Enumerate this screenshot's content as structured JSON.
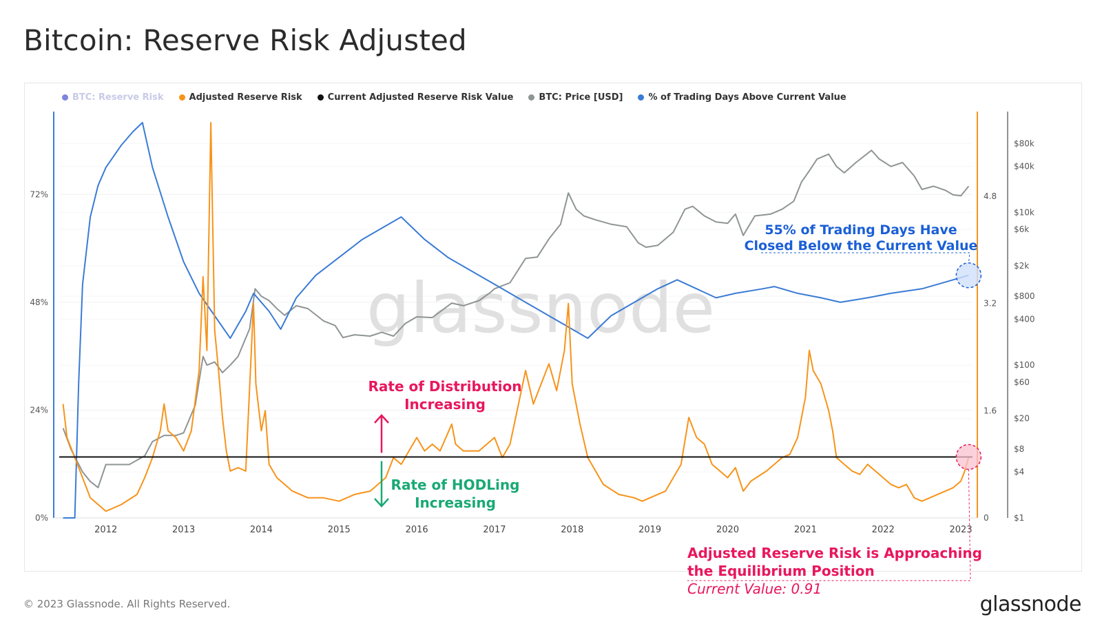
{
  "title": "Bitcoin: Reserve Risk Adjusted",
  "legend": [
    {
      "label": "BTC: Reserve Risk",
      "color": "#7c84e0",
      "dim": true
    },
    {
      "label": "Adjusted Reserve Risk",
      "color": "#f7931a",
      "dim": false
    },
    {
      "label": "Current Adjusted Reserve Risk Value",
      "color": "#111111",
      "dim": false
    },
    {
      "label": "BTC: Price [USD]",
      "color": "#8f9495",
      "dim": false
    },
    {
      "label": "% of Trading Days Above Current Value",
      "color": "#3a7bd5",
      "dim": false
    }
  ],
  "watermark": "glassnode",
  "footer": "© 2023 Glassnode. All Rights Reserved.",
  "brand": "glassnode",
  "annotations": {
    "distribution_line1": "Rate of Distribution",
    "distribution_line2": "Increasing",
    "hodling_line1": "Rate of HODLing",
    "hodling_line2": "Increasing",
    "trading_days_line1": "55% of Trading Days Have",
    "trading_days_line2": "Closed Below the Current Value",
    "equilibrium_line1": "Adjusted Reserve Risk is Approaching",
    "equilibrium_line2": "the Equilibrium Position",
    "current_value": "Current Value: 0.91"
  },
  "colors": {
    "orange": "#f7931a",
    "blue": "#3a7bd5",
    "grey": "#8f9495",
    "black": "#111111",
    "pink": "#e8175d",
    "green": "#19a974",
    "annot_blue": "#1a5fd6"
  },
  "chart_data": {
    "type": "line",
    "x_ticks": [
      "2012",
      "2013",
      "2014",
      "2015",
      "2016",
      "2017",
      "2018",
      "2019",
      "2020",
      "2021",
      "2022",
      "2023"
    ],
    "x_range": [
      2011.4,
      2023.15
    ],
    "left_axis": {
      "ticks": [
        "0%",
        "24%",
        "48%",
        "72%"
      ],
      "range": [
        0,
        88
      ]
    },
    "right_axis_risk": {
      "ticks": [
        "0",
        "1.6",
        "3.2",
        "4.8"
      ],
      "range": [
        0,
        5.9
      ]
    },
    "right_axis_price": {
      "ticks": [
        "$1",
        "$4",
        "$8",
        "$20",
        "$60",
        "$100",
        "$400",
        "$800",
        "$2k",
        "$6k",
        "$10k",
        "$40k",
        "$80k"
      ],
      "tick_values": [
        1,
        4,
        8,
        20,
        60,
        100,
        400,
        800,
        2000,
        6000,
        10000,
        40000,
        80000
      ],
      "scale": "log",
      "range": [
        1,
        150000
      ]
    },
    "current_value": 0.91,
    "series": [
      {
        "name": "Adjusted Reserve Risk",
        "axis": "risk",
        "points": [
          [
            2011.45,
            1.7
          ],
          [
            2011.5,
            1.2
          ],
          [
            2011.6,
            0.9
          ],
          [
            2011.7,
            0.6
          ],
          [
            2011.8,
            0.3
          ],
          [
            2011.9,
            0.2
          ],
          [
            2012.0,
            0.1
          ],
          [
            2012.2,
            0.2
          ],
          [
            2012.4,
            0.35
          ],
          [
            2012.5,
            0.6
          ],
          [
            2012.6,
            0.9
          ],
          [
            2012.7,
            1.3
          ],
          [
            2012.75,
            1.7
          ],
          [
            2012.8,
            1.3
          ],
          [
            2012.9,
            1.2
          ],
          [
            2013.0,
            1.0
          ],
          [
            2013.1,
            1.3
          ],
          [
            2013.2,
            2.2
          ],
          [
            2013.25,
            3.6
          ],
          [
            2013.3,
            2.5
          ],
          [
            2013.35,
            5.9
          ],
          [
            2013.4,
            2.8
          ],
          [
            2013.45,
            2.2
          ],
          [
            2013.5,
            1.5
          ],
          [
            2013.55,
            1.0
          ],
          [
            2013.6,
            0.7
          ],
          [
            2013.7,
            0.75
          ],
          [
            2013.8,
            0.7
          ],
          [
            2013.9,
            3.2
          ],
          [
            2013.93,
            2.0
          ],
          [
            2014.0,
            1.3
          ],
          [
            2014.05,
            1.6
          ],
          [
            2014.1,
            0.8
          ],
          [
            2014.2,
            0.6
          ],
          [
            2014.3,
            0.5
          ],
          [
            2014.4,
            0.4
          ],
          [
            2014.6,
            0.3
          ],
          [
            2014.8,
            0.3
          ],
          [
            2015.0,
            0.25
          ],
          [
            2015.2,
            0.35
          ],
          [
            2015.4,
            0.4
          ],
          [
            2015.6,
            0.6
          ],
          [
            2015.7,
            0.9
          ],
          [
            2015.8,
            0.8
          ],
          [
            2015.9,
            1.0
          ],
          [
            2016.0,
            1.2
          ],
          [
            2016.1,
            1.0
          ],
          [
            2016.2,
            1.1
          ],
          [
            2016.3,
            1.0
          ],
          [
            2016.45,
            1.4
          ],
          [
            2016.5,
            1.1
          ],
          [
            2016.6,
            1.0
          ],
          [
            2016.8,
            1.0
          ],
          [
            2017.0,
            1.2
          ],
          [
            2017.1,
            0.9
          ],
          [
            2017.2,
            1.1
          ],
          [
            2017.4,
            2.2
          ],
          [
            2017.5,
            1.7
          ],
          [
            2017.6,
            2.0
          ],
          [
            2017.7,
            2.3
          ],
          [
            2017.8,
            1.9
          ],
          [
            2017.9,
            2.5
          ],
          [
            2017.95,
            3.2
          ],
          [
            2018.0,
            2.0
          ],
          [
            2018.1,
            1.4
          ],
          [
            2018.2,
            0.9
          ],
          [
            2018.3,
            0.7
          ],
          [
            2018.4,
            0.5
          ],
          [
            2018.6,
            0.35
          ],
          [
            2018.8,
            0.3
          ],
          [
            2018.9,
            0.25
          ],
          [
            2019.0,
            0.3
          ],
          [
            2019.2,
            0.4
          ],
          [
            2019.4,
            0.8
          ],
          [
            2019.5,
            1.5
          ],
          [
            2019.6,
            1.2
          ],
          [
            2019.7,
            1.1
          ],
          [
            2019.8,
            0.8
          ],
          [
            2019.9,
            0.7
          ],
          [
            2020.0,
            0.6
          ],
          [
            2020.1,
            0.75
          ],
          [
            2020.2,
            0.4
          ],
          [
            2020.3,
            0.55
          ],
          [
            2020.5,
            0.7
          ],
          [
            2020.6,
            0.8
          ],
          [
            2020.7,
            0.9
          ],
          [
            2020.8,
            0.95
          ],
          [
            2020.9,
            1.2
          ],
          [
            2021.0,
            1.8
          ],
          [
            2021.05,
            2.5
          ],
          [
            2021.1,
            2.2
          ],
          [
            2021.2,
            2.0
          ],
          [
            2021.3,
            1.6
          ],
          [
            2021.35,
            1.3
          ],
          [
            2021.4,
            0.9
          ],
          [
            2021.5,
            0.8
          ],
          [
            2021.6,
            0.7
          ],
          [
            2021.7,
            0.65
          ],
          [
            2021.8,
            0.8
          ],
          [
            2021.9,
            0.7
          ],
          [
            2022.0,
            0.6
          ],
          [
            2022.1,
            0.5
          ],
          [
            2022.2,
            0.45
          ],
          [
            2022.3,
            0.5
          ],
          [
            2022.4,
            0.3
          ],
          [
            2022.5,
            0.25
          ],
          [
            2022.6,
            0.3
          ],
          [
            2022.7,
            0.35
          ],
          [
            2022.8,
            0.4
          ],
          [
            2022.9,
            0.45
          ],
          [
            2023.0,
            0.55
          ],
          [
            2023.05,
            0.7
          ],
          [
            2023.1,
            0.91
          ]
        ]
      },
      {
        "name": "% of Trading Days Above Current Value",
        "axis": "percent",
        "points": [
          [
            2011.45,
            0
          ],
          [
            2011.6,
            0
          ],
          [
            2011.65,
            30
          ],
          [
            2011.7,
            52
          ],
          [
            2011.8,
            67
          ],
          [
            2011.9,
            74
          ],
          [
            2012.0,
            78
          ],
          [
            2012.2,
            83
          ],
          [
            2012.35,
            86
          ],
          [
            2012.47,
            88
          ],
          [
            2012.6,
            78
          ],
          [
            2012.8,
            67
          ],
          [
            2013.0,
            57
          ],
          [
            2013.2,
            50
          ],
          [
            2013.4,
            45
          ],
          [
            2013.6,
            40
          ],
          [
            2013.8,
            46
          ],
          [
            2013.9,
            50
          ],
          [
            2014.1,
            46
          ],
          [
            2014.25,
            42
          ],
          [
            2014.45,
            49
          ],
          [
            2014.7,
            54
          ],
          [
            2015.0,
            58
          ],
          [
            2015.3,
            62
          ],
          [
            2015.6,
            65
          ],
          [
            2015.8,
            67
          ],
          [
            2016.1,
            62
          ],
          [
            2016.4,
            58
          ],
          [
            2016.7,
            55
          ],
          [
            2017.0,
            52
          ],
          [
            2017.3,
            49
          ],
          [
            2017.6,
            46
          ],
          [
            2017.9,
            43
          ],
          [
            2018.2,
            40
          ],
          [
            2018.5,
            45
          ],
          [
            2018.8,
            48
          ],
          [
            2019.1,
            51
          ],
          [
            2019.35,
            53
          ],
          [
            2019.6,
            51
          ],
          [
            2019.85,
            49
          ],
          [
            2020.1,
            50
          ],
          [
            2020.45,
            51
          ],
          [
            2020.6,
            51.5
          ],
          [
            2020.9,
            50
          ],
          [
            2021.2,
            49
          ],
          [
            2021.45,
            48
          ],
          [
            2021.8,
            49
          ],
          [
            2022.1,
            50
          ],
          [
            2022.5,
            51
          ],
          [
            2022.9,
            53
          ],
          [
            2023.1,
            54
          ]
        ]
      },
      {
        "name": "BTC: Price [USD]",
        "axis": "price",
        "points": [
          [
            2011.45,
            15
          ],
          [
            2011.55,
            8
          ],
          [
            2011.7,
            4
          ],
          [
            2011.8,
            3
          ],
          [
            2011.9,
            2.5
          ],
          [
            2012.0,
            5
          ],
          [
            2012.1,
            5
          ],
          [
            2012.3,
            5
          ],
          [
            2012.5,
            6.5
          ],
          [
            2012.6,
            10
          ],
          [
            2012.75,
            12
          ],
          [
            2012.9,
            12
          ],
          [
            2013.0,
            13
          ],
          [
            2013.15,
            30
          ],
          [
            2013.25,
            130
          ],
          [
            2013.3,
            100
          ],
          [
            2013.4,
            110
          ],
          [
            2013.5,
            80
          ],
          [
            2013.6,
            100
          ],
          [
            2013.7,
            130
          ],
          [
            2013.85,
            300
          ],
          [
            2013.92,
            1000
          ],
          [
            2014.0,
            800
          ],
          [
            2014.1,
            700
          ],
          [
            2014.2,
            550
          ],
          [
            2014.3,
            450
          ],
          [
            2014.45,
            600
          ],
          [
            2014.6,
            550
          ],
          [
            2014.8,
            380
          ],
          [
            2014.95,
            330
          ],
          [
            2015.05,
            230
          ],
          [
            2015.2,
            250
          ],
          [
            2015.4,
            240
          ],
          [
            2015.55,
            270
          ],
          [
            2015.7,
            240
          ],
          [
            2015.85,
            350
          ],
          [
            2016.0,
            430
          ],
          [
            2016.2,
            420
          ],
          [
            2016.45,
            650
          ],
          [
            2016.6,
            600
          ],
          [
            2016.8,
            700
          ],
          [
            2016.95,
            900
          ],
          [
            2017.0,
            1000
          ],
          [
            2017.2,
            1200
          ],
          [
            2017.4,
            2500
          ],
          [
            2017.55,
            2600
          ],
          [
            2017.7,
            4500
          ],
          [
            2017.85,
            7000
          ],
          [
            2017.95,
            18000
          ],
          [
            2018.05,
            11000
          ],
          [
            2018.15,
            9000
          ],
          [
            2018.3,
            8000
          ],
          [
            2018.5,
            7000
          ],
          [
            2018.7,
            6500
          ],
          [
            2018.85,
            4000
          ],
          [
            2018.95,
            3500
          ],
          [
            2019.1,
            3700
          ],
          [
            2019.3,
            5500
          ],
          [
            2019.45,
            11000
          ],
          [
            2019.55,
            12000
          ],
          [
            2019.7,
            9000
          ],
          [
            2019.85,
            7500
          ],
          [
            2020.0,
            7200
          ],
          [
            2020.1,
            9500
          ],
          [
            2020.2,
            5000
          ],
          [
            2020.35,
            9000
          ],
          [
            2020.55,
            9500
          ],
          [
            2020.7,
            11000
          ],
          [
            2020.85,
            14000
          ],
          [
            2020.95,
            25000
          ],
          [
            2021.05,
            35000
          ],
          [
            2021.15,
            50000
          ],
          [
            2021.3,
            58000
          ],
          [
            2021.4,
            40000
          ],
          [
            2021.5,
            33000
          ],
          [
            2021.65,
            45000
          ],
          [
            2021.85,
            65000
          ],
          [
            2021.95,
            50000
          ],
          [
            2022.1,
            40000
          ],
          [
            2022.25,
            45000
          ],
          [
            2022.4,
            30000
          ],
          [
            2022.5,
            20000
          ],
          [
            2022.65,
            22000
          ],
          [
            2022.8,
            19500
          ],
          [
            2022.9,
            17000
          ],
          [
            2023.0,
            16500
          ],
          [
            2023.1,
            22000
          ]
        ]
      }
    ]
  }
}
